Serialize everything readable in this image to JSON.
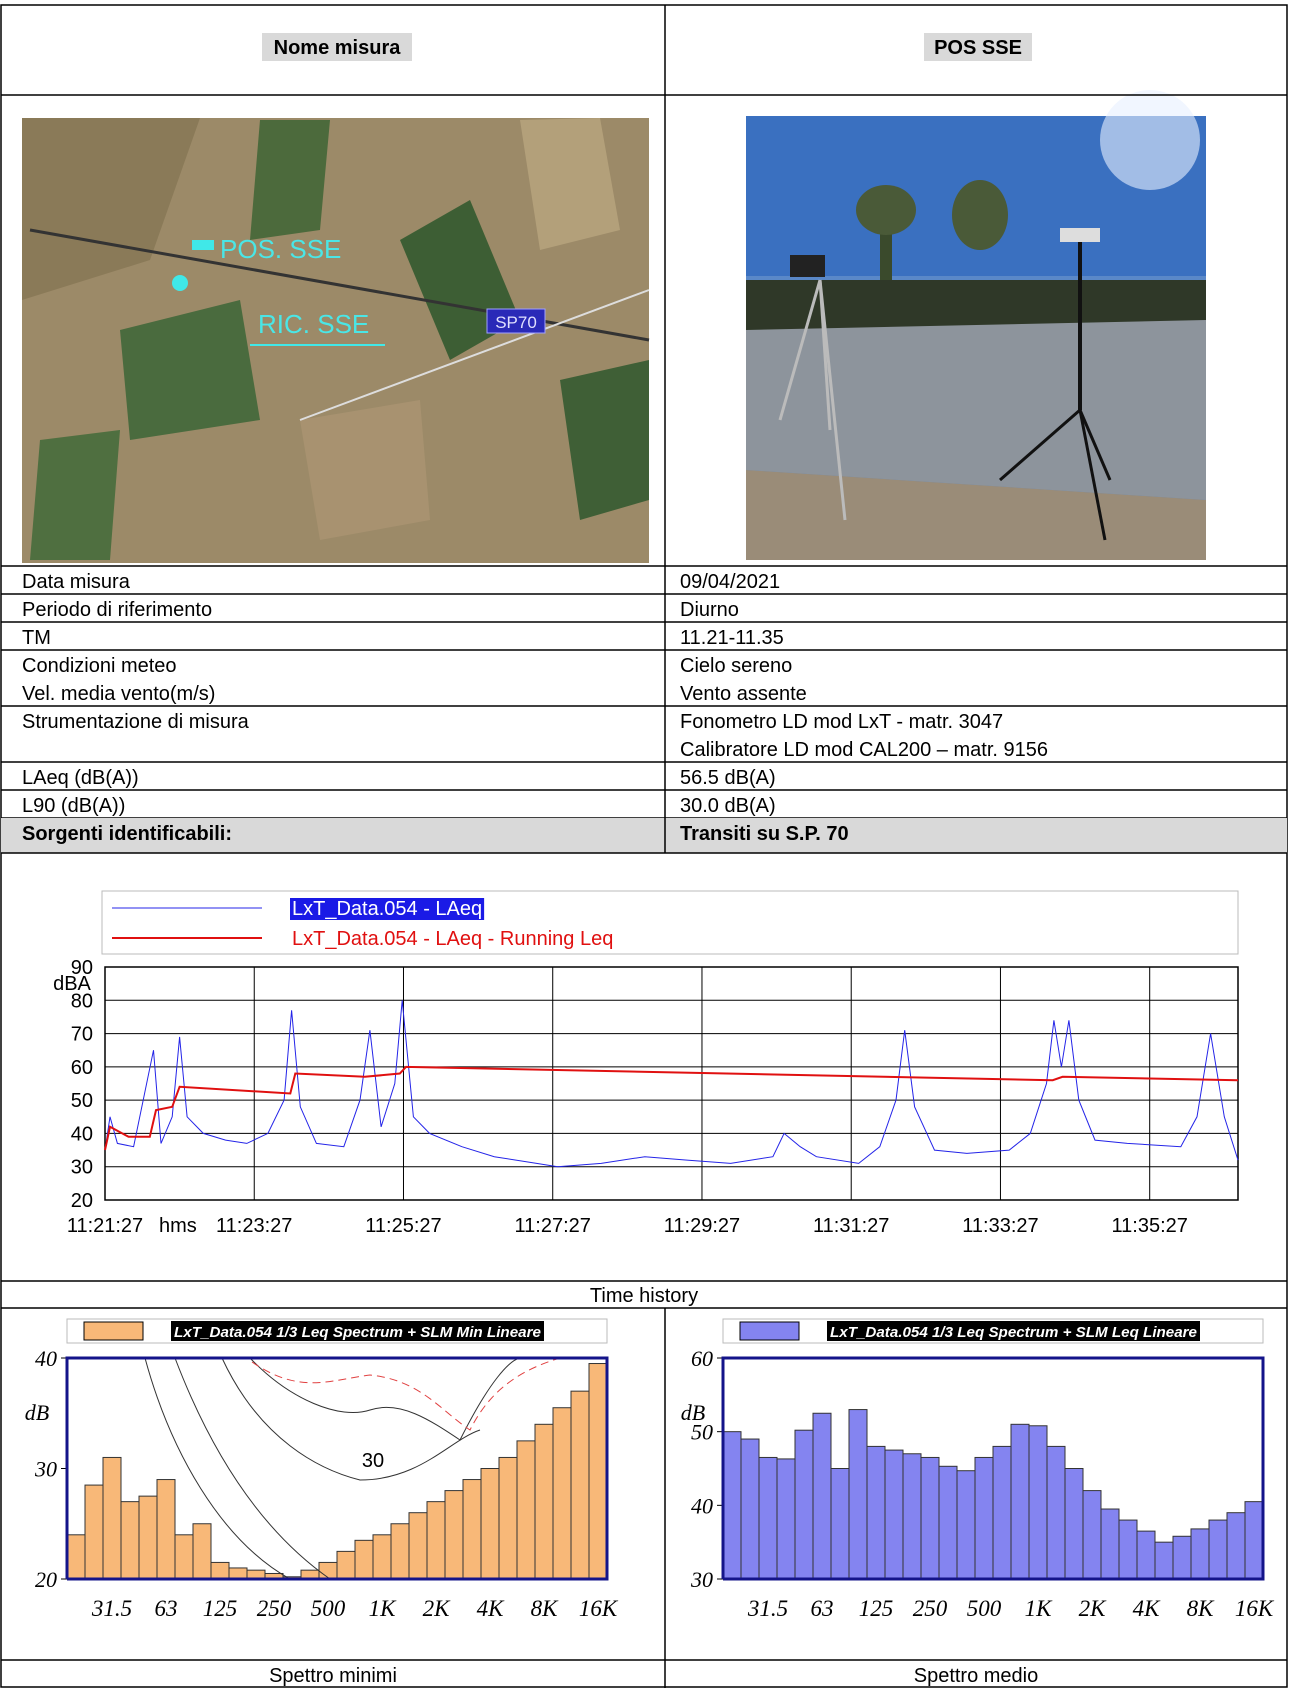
{
  "header": {
    "left": "Nome misura",
    "right": "POS SSE"
  },
  "images": {
    "map_labels": [
      "POS. SSE",
      "RIC. SSE",
      "SP70"
    ]
  },
  "rows": [
    {
      "label": [
        "Data misura"
      ],
      "value": [
        "09/04/2021"
      ]
    },
    {
      "label": [
        "Periodo di riferimento"
      ],
      "value": [
        "Diurno"
      ]
    },
    {
      "label": [
        "TM"
      ],
      "value": [
        "11.21-11.35"
      ]
    },
    {
      "label": [
        "Condizioni meteo",
        "Vel. media vento(m/s)"
      ],
      "value": [
        "Cielo sereno",
        "Vento assente"
      ]
    },
    {
      "label": [
        "Strumentazione di misura"
      ],
      "value": [
        "Fonometro LD mod LxT -  matr. 3047",
        "Calibratore LD mod CAL200 – matr. 9156"
      ]
    },
    {
      "label": [
        "LAeq (dB(A))"
      ],
      "value": [
        "56.5 dB(A)"
      ]
    },
    {
      "label": [
        "L90 (dB(A))"
      ],
      "value": [
        "30.0 dB(A)"
      ]
    },
    {
      "label": [
        "Sorgenti identificabili:"
      ],
      "value": [
        "Transiti su S.P. 70"
      ]
    }
  ],
  "chart_data": [
    {
      "type": "line",
      "title": "Time history",
      "y_label": "dBA",
      "x_unit": "hms",
      "xlim": [
        40887,
        41798
      ],
      "xticks": [
        {
          "value": 40887,
          "label": "11:21:27"
        },
        {
          "value": 41007,
          "label": "11:23:27"
        },
        {
          "value": 41127,
          "label": "11:25:27"
        },
        {
          "value": 41247,
          "label": "11:27:27"
        },
        {
          "value": 41367,
          "label": "11:29:27"
        },
        {
          "value": 41487,
          "label": "11:31:27"
        },
        {
          "value": 41607,
          "label": "11:33:27"
        },
        {
          "value": 41727,
          "label": "11:35:27"
        }
      ],
      "ylim": [
        20,
        90
      ],
      "yticks": [
        20,
        30,
        40,
        50,
        60,
        70,
        80,
        90
      ],
      "grid": true,
      "series": [
        {
          "name": "LxT_Data.054 - LAeq",
          "color": "#2424e8",
          "x": [
            40887,
            40891,
            40897,
            40910,
            40926,
            40932,
            40941,
            40947,
            40953,
            40966,
            40984,
            41001,
            41018,
            41031,
            41037,
            41044,
            41057,
            41079,
            41092,
            41100,
            41109,
            41120,
            41126,
            41135,
            41148,
            41174,
            41200,
            41234,
            41251,
            41286,
            41321,
            41355,
            41390,
            41424,
            41433,
            41446,
            41459,
            41493,
            41510,
            41523,
            41530,
            41538,
            41554,
            41580,
            41614,
            41631,
            41644,
            41650,
            41656,
            41662,
            41670,
            41683,
            41709,
            41752,
            41765,
            41776,
            41787,
            41798
          ],
          "values": [
            35,
            45,
            37,
            36,
            65,
            37,
            45,
            69,
            45,
            40,
            38,
            37,
            40,
            50,
            77,
            48,
            37,
            36,
            50,
            71,
            42,
            55,
            80,
            45,
            40,
            36,
            33,
            31,
            30,
            31,
            33,
            32,
            31,
            33,
            40,
            36,
            33,
            31,
            36,
            50,
            71,
            48,
            35,
            34,
            35,
            40,
            55,
            74,
            60,
            74,
            50,
            38,
            37,
            36,
            45,
            70,
            45,
            32
          ]
        },
        {
          "name": "LxT_Data.054 - LAeq - Running Leq",
          "color": "#e01010",
          "x": [
            40887,
            40891,
            40906,
            40923,
            40928,
            40941,
            40947,
            41036,
            41040,
            41096,
            41124,
            41129,
            41649,
            41657,
            41798
          ],
          "values": [
            35,
            42,
            39,
            39,
            47,
            48,
            54,
            52,
            58,
            57,
            58,
            60,
            56,
            57,
            56
          ]
        }
      ]
    },
    {
      "type": "bar",
      "title": "Spettro minimi",
      "y_label": "dB",
      "annotation": "30",
      "legend": "LxT_Data.054 1/3 Leq Spectrum + SLM Min Lineare",
      "color": "#f8b878",
      "categories": [
        null,
        null,
        "31.5",
        null,
        null,
        "63",
        null,
        null,
        "125",
        null,
        null,
        "250",
        null,
        null,
        "500",
        null,
        null,
        "1K",
        null,
        null,
        "2K",
        null,
        null,
        "4K",
        null,
        null,
        "8K",
        null,
        null,
        "16K"
      ],
      "values": [
        24,
        28.5,
        31,
        27,
        27.5,
        29,
        24,
        25,
        21.5,
        21,
        20.8,
        20.5,
        20.2,
        20.8,
        21.5,
        22.5,
        23.5,
        24,
        25,
        26,
        27,
        28,
        29,
        30,
        31,
        32.5,
        34,
        35.5,
        37,
        39.5
      ],
      "ylim": [
        20,
        40
      ],
      "yticks": [
        20,
        30,
        40
      ]
    },
    {
      "type": "bar",
      "title": "Spettro medio",
      "y_label": "dB",
      "legend": "LxT_Data.054 1/3 Leq Spectrum + SLM Leq Lineare",
      "color": "#8484f0",
      "categories": [
        null,
        null,
        "31.5",
        null,
        null,
        "63",
        null,
        null,
        "125",
        null,
        null,
        "250",
        null,
        null,
        "500",
        null,
        null,
        "1K",
        null,
        null,
        "2K",
        null,
        null,
        "4K",
        null,
        null,
        "8K",
        null,
        null,
        "16K"
      ],
      "values": [
        50,
        49,
        46.5,
        46.3,
        50.2,
        52.5,
        45,
        53,
        48,
        47.5,
        47,
        46.5,
        45.3,
        44.7,
        46.5,
        48,
        51,
        50.8,
        48,
        45,
        42,
        39.5,
        38,
        36.5,
        35,
        35.8,
        36.8,
        38,
        39,
        40.5
      ],
      "ylim": [
        30,
        60
      ],
      "yticks": [
        30,
        40,
        50,
        60
      ]
    }
  ]
}
